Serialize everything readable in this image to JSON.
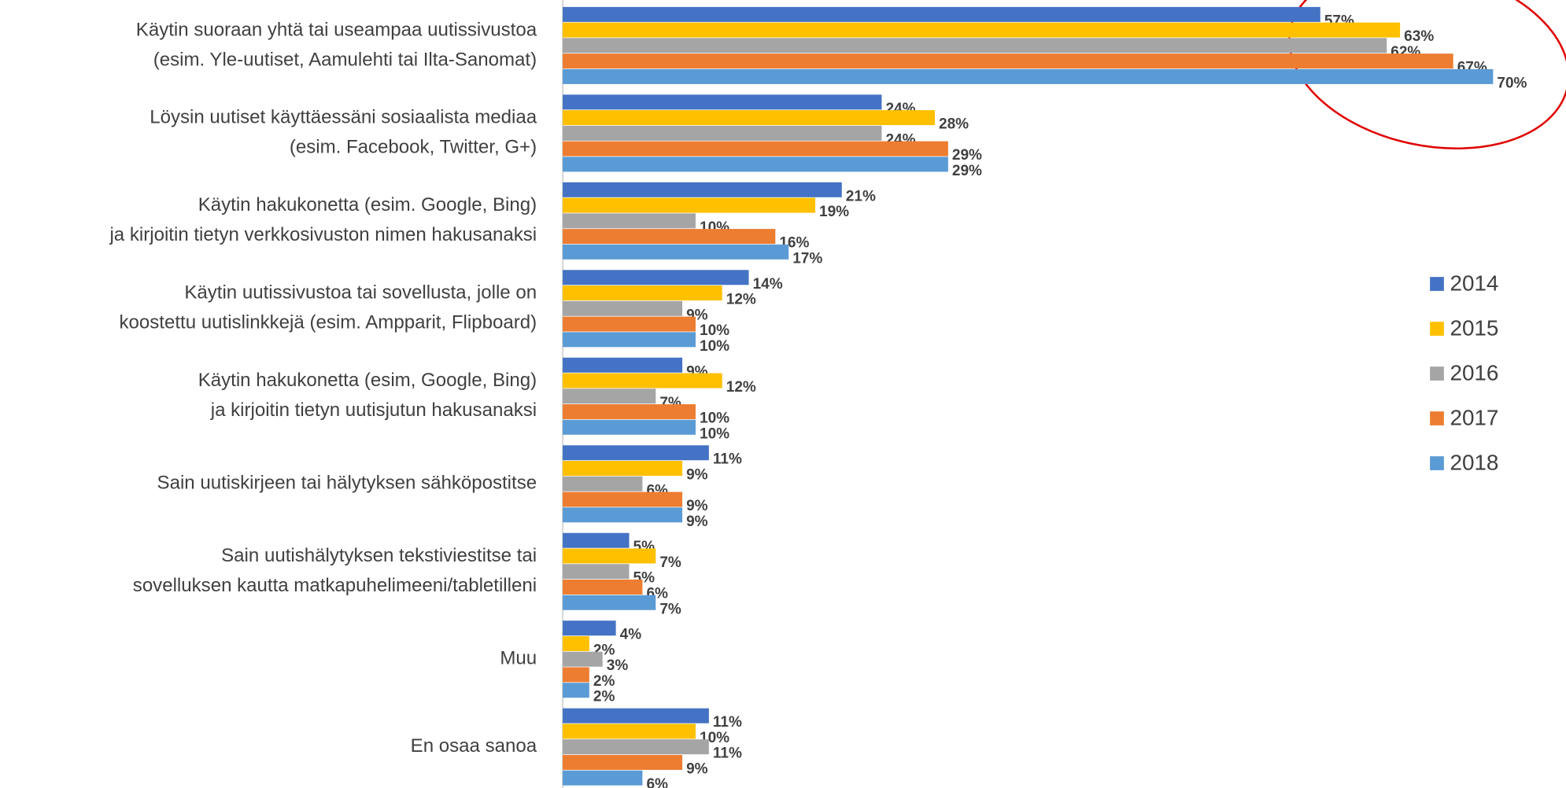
{
  "chart_data": {
    "type": "bar",
    "orientation": "horizontal",
    "categories": [
      "Käytin suoraan yhtä tai useampaa uutissivustoa\n(esim. Yle-uutiset, Aamulehti tai Ilta-Sanomat)",
      "Löysin uutiset käyttäessäni sosiaalista mediaa\n(esim. Facebook, Twitter, G+)",
      "Käytin hakukonetta (esim. Google, Bing)\nja kirjoitin tietyn verkkosivuston nimen hakusanaksi",
      "Käytin uutissivustoa tai sovellusta, jolle on\nkoostettu uutislinkkejä (esim. Ampparit, Flipboard)",
      "Käytin hakukonetta (esim, Google, Bing)\nja kirjoitin tietyn uutisjutun hakusanaksi",
      "Sain uutiskirjeen tai hälytyksen sähköpostitse",
      "Sain uutishälytyksen tekstiviestitse tai\nsovelluksen kautta matkapuhelimeeni/tabletilleni",
      "Muu",
      "En osaa sanoa"
    ],
    "series": [
      {
        "name": "2014",
        "color": "#4472c4",
        "values": [
          57,
          24,
          21,
          14,
          9,
          11,
          5,
          4,
          11
        ],
        "value_labels": [
          "57%",
          "24%",
          "21%",
          "14%",
          "9%",
          "11%",
          "5%",
          "4%",
          "11%"
        ]
      },
      {
        "name": "2015",
        "color": "#ffc000",
        "values": [
          63,
          28,
          19,
          12,
          12,
          9,
          7,
          2,
          10
        ],
        "value_labels": [
          "63%",
          "28%",
          "19%",
          "12%",
          "12%",
          "9%",
          "7%",
          "2%",
          "10%"
        ]
      },
      {
        "name": "2016",
        "color": "#a5a5a5",
        "values": [
          62,
          24,
          10,
          9,
          7,
          6,
          5,
          3,
          11
        ],
        "value_labels": [
          "62%",
          "24%",
          "10%",
          "9%",
          "7%",
          "6%",
          "5%",
          "3%",
          "11%"
        ]
      },
      {
        "name": "2017",
        "color": "#ed7d31",
        "values": [
          67,
          29,
          16,
          10,
          10,
          9,
          6,
          2,
          9
        ],
        "value_labels": [
          "67%",
          "29%",
          "16%",
          "10%",
          "10%",
          "9%",
          "6%",
          "2%",
          "9%"
        ]
      },
      {
        "name": "2018",
        "color": "#5b9bd5",
        "values": [
          70,
          29,
          17,
          10,
          10,
          9,
          7,
          2,
          6
        ],
        "value_labels": [
          "70%",
          "29%",
          "17%",
          "10%",
          "10%",
          "9%",
          "7%",
          "2%",
          "6%"
        ]
      }
    ],
    "xlim": [
      0,
      75
    ],
    "legend": "right"
  }
}
